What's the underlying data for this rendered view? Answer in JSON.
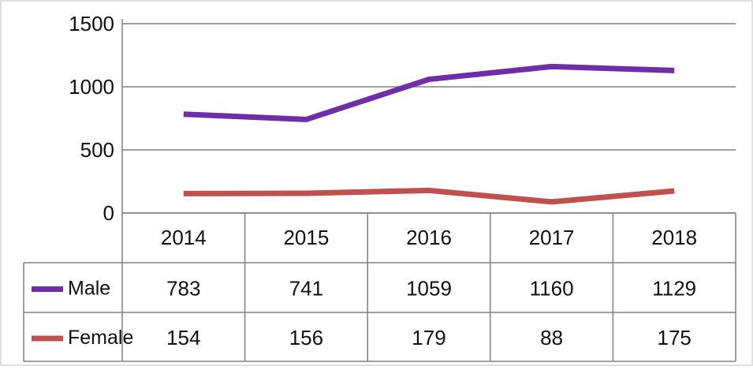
{
  "chart_data": {
    "type": "line",
    "categories": [
      "2014",
      "2015",
      "2016",
      "2017",
      "2018"
    ],
    "series": [
      {
        "name": "Male",
        "values": [
          783,
          741,
          1059,
          1160,
          1129
        ],
        "color": "#6f2da8"
      },
      {
        "name": "Female",
        "values": [
          154,
          156,
          179,
          88,
          175
        ],
        "color": "#c0504d"
      }
    ],
    "ylim": [
      0,
      1500
    ],
    "yticks": [
      "0",
      "500",
      "1000",
      "1500"
    ],
    "grid": true,
    "legend": "data-table",
    "data_table": true
  }
}
